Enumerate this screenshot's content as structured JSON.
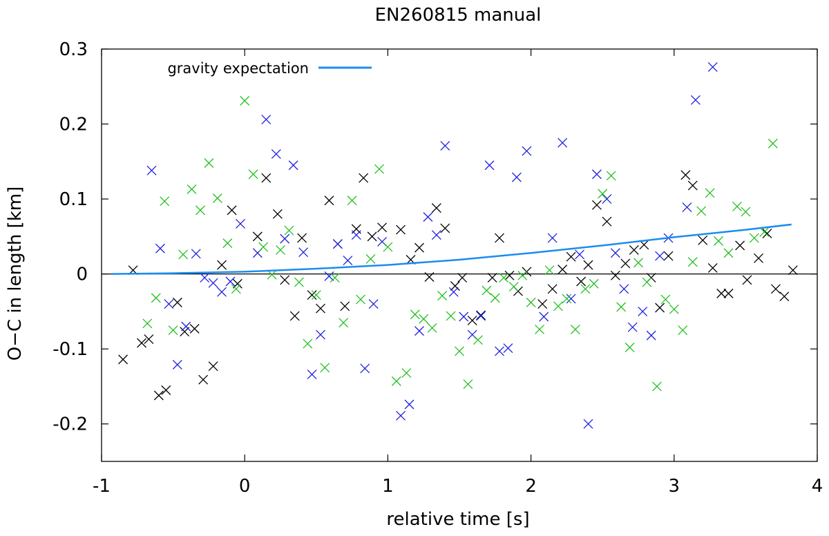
{
  "chart_data": {
    "type": "scatter",
    "title": "EN260815 manual",
    "xlabel": "relative time [s]",
    "ylabel": "O−C in length [km]",
    "xlim": [
      -1,
      4
    ],
    "ylim": [
      -0.25,
      0.3
    ],
    "xticks": [
      -1,
      0,
      1,
      2,
      3,
      4
    ],
    "xtick_labels": [
      "-1",
      "0",
      "1",
      "2",
      "3",
      "4"
    ],
    "yticks": [
      -0.2,
      -0.1,
      0,
      0.1,
      0.2,
      0.3
    ],
    "ytick_labels": [
      "-0.2",
      "-0.1",
      "0",
      "0.1",
      "0.2",
      "0.3"
    ],
    "zero_line": true,
    "legend": {
      "label": "gravity expectation",
      "position": "top-left"
    },
    "gravity_curve": {
      "name": "gravity expectation",
      "color": "#1a8cf0",
      "x": [
        -0.93,
        -0.5,
        0,
        0.5,
        1,
        1.5,
        2,
        2.5,
        3,
        3.5,
        3.82
      ],
      "y": [
        0.0,
        0.001,
        0.003,
        0.007,
        0.012,
        0.019,
        0.028,
        0.038,
        0.049,
        0.059,
        0.066
      ]
    },
    "series": [
      {
        "name": "black",
        "color": "#000000",
        "points": [
          [
            -0.85,
            -0.114
          ],
          [
            -0.78,
            0.005
          ],
          [
            -0.72,
            -0.092
          ],
          [
            -0.67,
            -0.087
          ],
          [
            -0.6,
            -0.162
          ],
          [
            -0.55,
            -0.155
          ],
          [
            -0.47,
            -0.038
          ],
          [
            -0.42,
            -0.077
          ],
          [
            -0.35,
            -0.073
          ],
          [
            -0.29,
            -0.141
          ],
          [
            -0.22,
            -0.123
          ],
          [
            -0.16,
            0.012
          ],
          [
            -0.09,
            0.085
          ],
          [
            -0.05,
            -0.013
          ],
          [
            0.09,
            0.05
          ],
          [
            0.15,
            0.128
          ],
          [
            0.23,
            0.08
          ],
          [
            0.28,
            -0.008
          ],
          [
            0.35,
            -0.056
          ],
          [
            0.4,
            0.048
          ],
          [
            0.47,
            -0.028
          ],
          [
            0.53,
            -0.046
          ],
          [
            0.59,
            0.098
          ],
          [
            0.65,
            0.04
          ],
          [
            0.7,
            -0.043
          ],
          [
            0.78,
            0.06
          ],
          [
            0.83,
            0.128
          ],
          [
            0.89,
            0.05
          ],
          [
            0.96,
            0.062
          ],
          [
            1.09,
            0.059
          ],
          [
            1.16,
            0.019
          ],
          [
            1.22,
            0.035
          ],
          [
            1.29,
            -0.004
          ],
          [
            1.34,
            0.088
          ],
          [
            1.4,
            0.061
          ],
          [
            1.47,
            -0.016
          ],
          [
            1.52,
            -0.005
          ],
          [
            1.59,
            -0.062
          ],
          [
            1.65,
            -0.055
          ],
          [
            1.73,
            -0.005
          ],
          [
            1.78,
            0.048
          ],
          [
            1.85,
            -0.002
          ],
          [
            1.91,
            -0.023
          ],
          [
            1.97,
            0.003
          ],
          [
            2.08,
            -0.04
          ],
          [
            2.15,
            -0.02
          ],
          [
            2.22,
            0.006
          ],
          [
            2.28,
            0.023
          ],
          [
            2.35,
            -0.01
          ],
          [
            2.4,
            0.012
          ],
          [
            2.46,
            0.092
          ],
          [
            2.53,
            0.07
          ],
          [
            2.59,
            -0.002
          ],
          [
            2.66,
            0.014
          ],
          [
            2.72,
            0.032
          ],
          [
            2.79,
            0.039
          ],
          [
            2.84,
            -0.005
          ],
          [
            2.9,
            -0.045
          ],
          [
            2.96,
            0.024
          ],
          [
            3.08,
            0.132
          ],
          [
            3.13,
            0.118
          ],
          [
            3.2,
            0.045
          ],
          [
            3.27,
            0.008
          ],
          [
            3.33,
            -0.026
          ],
          [
            3.38,
            -0.026
          ],
          [
            3.46,
            0.038
          ],
          [
            3.51,
            -0.008
          ],
          [
            3.59,
            0.021
          ],
          [
            3.65,
            0.054
          ],
          [
            3.71,
            -0.02
          ],
          [
            3.77,
            -0.03
          ],
          [
            3.83,
            0.005
          ]
        ]
      },
      {
        "name": "blue",
        "color": "#1f1fe0",
        "points": [
          [
            -0.65,
            0.138
          ],
          [
            -0.59,
            0.034
          ],
          [
            -0.53,
            -0.04
          ],
          [
            -0.47,
            -0.121
          ],
          [
            -0.41,
            -0.07
          ],
          [
            -0.34,
            0.027
          ],
          [
            -0.28,
            -0.005
          ],
          [
            -0.22,
            -0.012
          ],
          [
            -0.16,
            -0.024
          ],
          [
            -0.1,
            -0.01
          ],
          [
            -0.03,
            0.067
          ],
          [
            0.09,
            0.028
          ],
          [
            0.15,
            0.206
          ],
          [
            0.22,
            0.16
          ],
          [
            0.28,
            0.047
          ],
          [
            0.34,
            0.145
          ],
          [
            0.41,
            0.029
          ],
          [
            0.47,
            -0.134
          ],
          [
            0.53,
            -0.081
          ],
          [
            0.59,
            -0.003
          ],
          [
            0.65,
            0.04
          ],
          [
            0.72,
            0.018
          ],
          [
            0.78,
            0.052
          ],
          [
            0.84,
            -0.126
          ],
          [
            0.9,
            -0.04
          ],
          [
            0.96,
            0.043
          ],
          [
            1.09,
            -0.189
          ],
          [
            1.15,
            -0.174
          ],
          [
            1.22,
            -0.076
          ],
          [
            1.28,
            0.076
          ],
          [
            1.34,
            0.052
          ],
          [
            1.4,
            0.171
          ],
          [
            1.46,
            -0.024
          ],
          [
            1.53,
            -0.057
          ],
          [
            1.59,
            -0.081
          ],
          [
            1.65,
            -0.056
          ],
          [
            1.71,
            0.145
          ],
          [
            1.78,
            -0.103
          ],
          [
            1.84,
            -0.099
          ],
          [
            1.9,
            0.129
          ],
          [
            1.97,
            0.164
          ],
          [
            2.09,
            -0.057
          ],
          [
            2.15,
            0.048
          ],
          [
            2.22,
            0.175
          ],
          [
            2.28,
            -0.033
          ],
          [
            2.34,
            0.026
          ],
          [
            2.4,
            -0.2
          ],
          [
            2.46,
            0.133
          ],
          [
            2.53,
            0.1
          ],
          [
            2.59,
            0.028
          ],
          [
            2.65,
            -0.02
          ],
          [
            2.71,
            -0.071
          ],
          [
            2.78,
            -0.05
          ],
          [
            2.84,
            -0.082
          ],
          [
            2.9,
            0.024
          ],
          [
            2.96,
            0.048
          ],
          [
            3.09,
            0.089
          ],
          [
            3.15,
            0.232
          ],
          [
            3.27,
            0.276
          ]
        ]
      },
      {
        "name": "green",
        "color": "#22c020",
        "points": [
          [
            -0.68,
            -0.066
          ],
          [
            -0.62,
            -0.032
          ],
          [
            -0.56,
            0.097
          ],
          [
            -0.5,
            -0.075
          ],
          [
            -0.43,
            0.026
          ],
          [
            -0.37,
            0.113
          ],
          [
            -0.31,
            0.085
          ],
          [
            -0.25,
            0.148
          ],
          [
            -0.19,
            0.101
          ],
          [
            -0.12,
            0.041
          ],
          [
            -0.06,
            -0.02
          ],
          [
            0.0,
            0.231
          ],
          [
            0.06,
            0.133
          ],
          [
            0.13,
            0.036
          ],
          [
            0.19,
            -0.001
          ],
          [
            0.25,
            0.032
          ],
          [
            0.31,
            0.058
          ],
          [
            0.38,
            -0.011
          ],
          [
            0.44,
            -0.093
          ],
          [
            0.5,
            -0.028
          ],
          [
            0.56,
            -0.125
          ],
          [
            0.63,
            -0.005
          ],
          [
            0.69,
            -0.065
          ],
          [
            0.75,
            0.098
          ],
          [
            0.81,
            -0.034
          ],
          [
            0.88,
            0.02
          ],
          [
            0.94,
            0.14
          ],
          [
            1.0,
            0.036
          ],
          [
            1.06,
            -0.143
          ],
          [
            1.13,
            -0.132
          ],
          [
            1.19,
            -0.054
          ],
          [
            1.25,
            -0.06
          ],
          [
            1.31,
            -0.072
          ],
          [
            1.38,
            -0.029
          ],
          [
            1.44,
            -0.056
          ],
          [
            1.5,
            -0.103
          ],
          [
            1.56,
            -0.147
          ],
          [
            1.63,
            -0.088
          ],
          [
            1.69,
            -0.022
          ],
          [
            1.75,
            -0.032
          ],
          [
            1.81,
            -0.005
          ],
          [
            1.88,
            -0.017
          ],
          [
            1.94,
            -0.002
          ],
          [
            2.0,
            -0.038
          ],
          [
            2.06,
            -0.074
          ],
          [
            2.13,
            0.005
          ],
          [
            2.19,
            -0.043
          ],
          [
            2.25,
            -0.033
          ],
          [
            2.31,
            -0.074
          ],
          [
            2.38,
            -0.02
          ],
          [
            2.44,
            -0.013
          ],
          [
            2.5,
            0.107
          ],
          [
            2.56,
            0.131
          ],
          [
            2.63,
            -0.044
          ],
          [
            2.69,
            -0.098
          ],
          [
            2.75,
            0.015
          ],
          [
            2.81,
            -0.011
          ],
          [
            2.88,
            -0.15
          ],
          [
            2.94,
            -0.034
          ],
          [
            3.0,
            -0.047
          ],
          [
            3.06,
            -0.075
          ],
          [
            3.13,
            0.016
          ],
          [
            3.19,
            0.084
          ],
          [
            3.25,
            0.108
          ],
          [
            3.31,
            0.044
          ],
          [
            3.38,
            0.028
          ],
          [
            3.44,
            0.09
          ],
          [
            3.5,
            0.083
          ],
          [
            3.56,
            0.048
          ],
          [
            3.63,
            0.056
          ],
          [
            3.69,
            0.174
          ]
        ]
      }
    ]
  }
}
